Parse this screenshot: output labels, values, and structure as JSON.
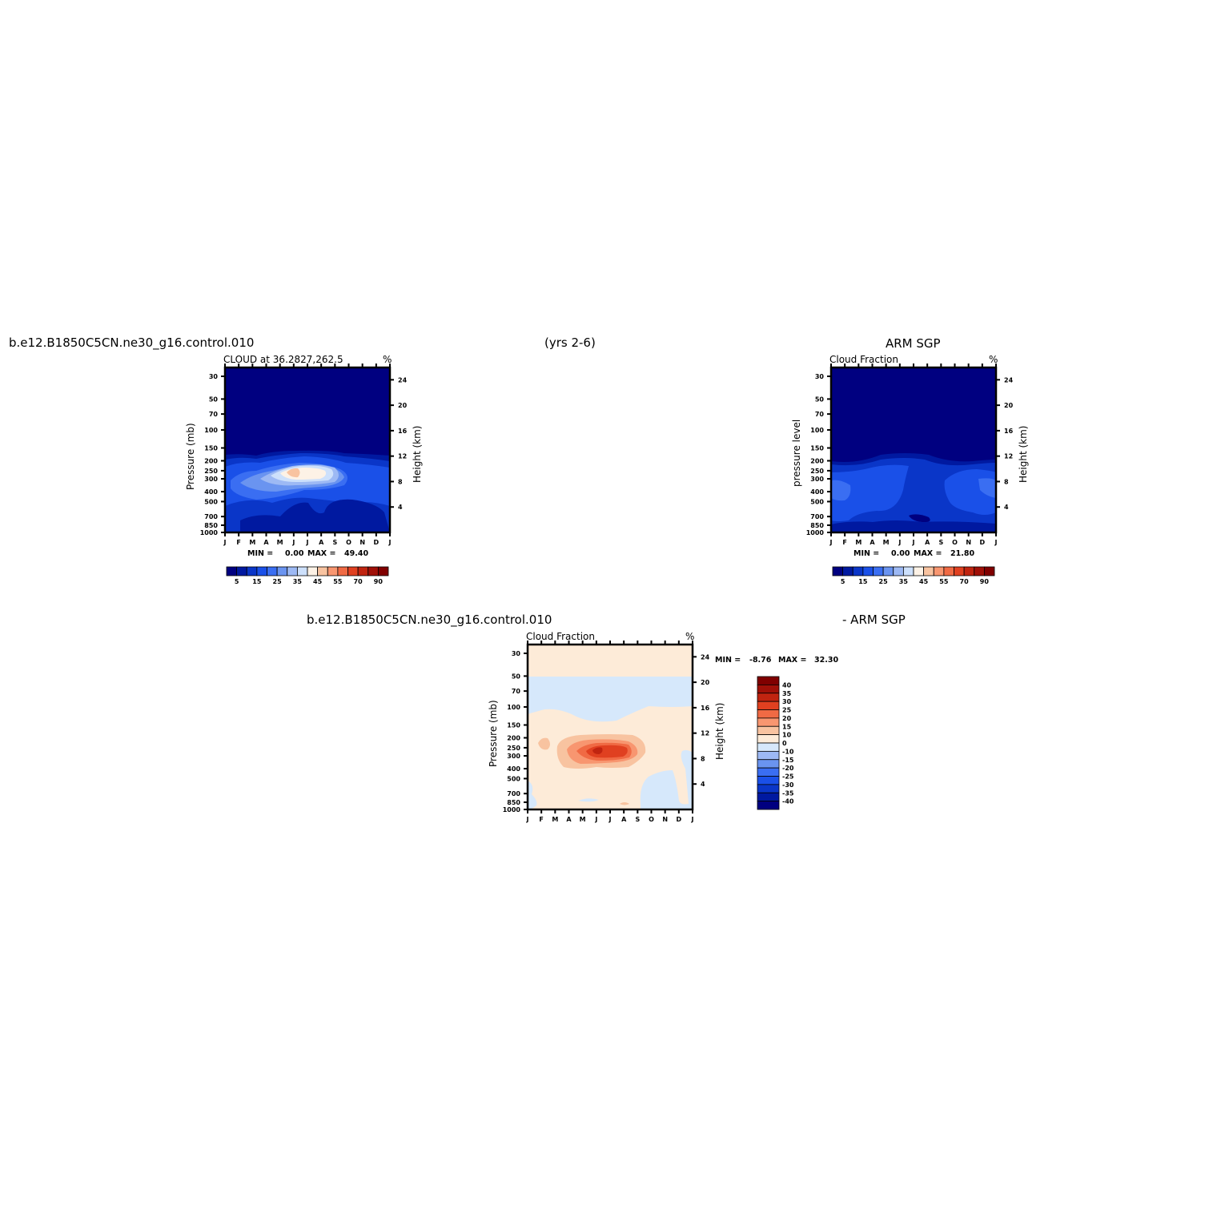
{
  "header": {
    "case_name": "b.e12.B1850C5CN.ne30_g16.control.010",
    "years": "(yrs 2-6)",
    "obs_name": "ARM SGP"
  },
  "colors": {
    "main_scale": [
      "#000080",
      "#0019a0",
      "#0a36c8",
      "#1a50e8",
      "#3a6ef2",
      "#6a94f0",
      "#9db9f4",
      "#cde0fb",
      "#fdf2e6",
      "#f8c3a0",
      "#f89670",
      "#f06a44",
      "#e04020",
      "#c02410",
      "#a01008",
      "#800000"
    ],
    "diff_scale": [
      "#000080",
      "#0019a0",
      "#0a36c8",
      "#1a50e8",
      "#3a6ef2",
      "#6a94f0",
      "#9db9f4",
      "#d6e8fb",
      "#fdebd8",
      "#f8c3a0",
      "#f89670",
      "#f06a44",
      "#e04020",
      "#c02410",
      "#a01008",
      "#800000"
    ]
  },
  "chart_data": [
    {
      "type": "heatmap",
      "panel": "model",
      "title": "CLOUD at 36.2827,262.5",
      "units": "%",
      "ylabel": "Pressure (mb)",
      "ylabel_right": "Height (km)",
      "x_ticks": [
        "J",
        "F",
        "M",
        "A",
        "M",
        "J",
        "J",
        "A",
        "S",
        "O",
        "N",
        "D",
        "J"
      ],
      "y_ticks": [
        "30",
        "50",
        "70",
        "100",
        "150",
        "200",
        "250",
        "300",
        "400",
        "500",
        "700",
        "850",
        "1000"
      ],
      "y_ticks_right": [
        "24",
        "20",
        "16",
        "12",
        "8",
        "4"
      ],
      "min_label": "MIN =",
      "min_value": "0.00",
      "max_label": "MAX =",
      "max_value": "49.40",
      "colorbar_labels": [
        "5",
        "15",
        "25",
        "35",
        "45",
        "55",
        "70",
        "90"
      ]
    },
    {
      "type": "heatmap",
      "panel": "obs",
      "title": "Cloud Fraction",
      "units": "%",
      "ylabel": "pressure level",
      "ylabel_right": "Height (km)",
      "x_ticks": [
        "J",
        "F",
        "M",
        "A",
        "M",
        "J",
        "J",
        "A",
        "S",
        "O",
        "N",
        "D",
        "J"
      ],
      "y_ticks": [
        "30",
        "50",
        "70",
        "100",
        "150",
        "200",
        "250",
        "300",
        "400",
        "500",
        "700",
        "850",
        "1000"
      ],
      "y_ticks_right": [
        "24",
        "20",
        "16",
        "12",
        "8",
        "4"
      ],
      "min_label": "MIN =",
      "min_value": "0.00",
      "max_label": "MAX =",
      "max_value": "21.80",
      "colorbar_labels": [
        "5",
        "15",
        "25",
        "35",
        "45",
        "55",
        "70",
        "90"
      ]
    },
    {
      "type": "heatmap",
      "panel": "difference",
      "case_name": "b.e12.B1850C5CN.ne30_g16.control.010",
      "minus_label": "- ARM SGP",
      "title": "Cloud Fraction",
      "units": "%",
      "ylabel": "Pressure (mb)",
      "ylabel_right": "Height (km)",
      "x_ticks": [
        "J",
        "F",
        "M",
        "A",
        "M",
        "J",
        "J",
        "A",
        "S",
        "O",
        "N",
        "D",
        "J"
      ],
      "y_ticks": [
        "30",
        "50",
        "70",
        "100",
        "150",
        "200",
        "250",
        "300",
        "400",
        "500",
        "700",
        "850",
        "1000"
      ],
      "y_ticks_right": [
        "24",
        "20",
        "16",
        "12",
        "8",
        "4"
      ],
      "min_label": "MIN =",
      "min_value": "-8.76",
      "max_label": "MAX =",
      "max_value": "32.30",
      "colorbar_labels": [
        "40",
        "35",
        "30",
        "25",
        "20",
        "15",
        "10",
        "0",
        "-10",
        "-15",
        "-20",
        "-25",
        "-30",
        "-35",
        "-40"
      ]
    }
  ]
}
